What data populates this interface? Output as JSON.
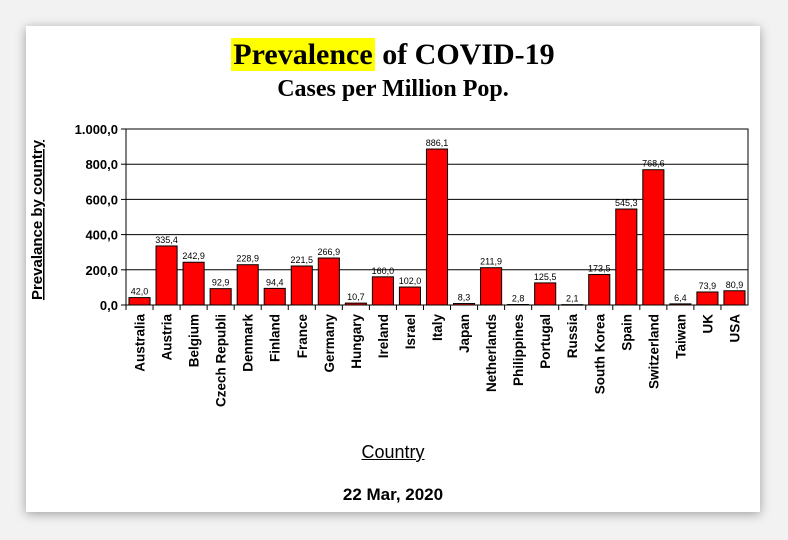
{
  "chart_data": {
    "type": "bar",
    "title_highlight": "Prevalence",
    "title_rest": " of COVID-19",
    "subtitle": "Cases per Million Pop.",
    "xlabel": "Country",
    "ylabel": "Prevalance by country",
    "footer": "22 Mar, 2020",
    "ylim": [
      0,
      1000
    ],
    "yticks": [
      "0,0",
      "200,0",
      "400,0",
      "600,0",
      "800,0",
      "1.000,0"
    ],
    "categories": [
      "Australia",
      "Austria",
      "Belgium",
      "Czech Republi",
      "Denmark",
      "Finland",
      "France",
      "Germany",
      "Hungary",
      "Ireland",
      "Israel",
      "Italy",
      "Japan",
      "Netherlands",
      "Philippines",
      "Portugal",
      "Russia",
      "South Korea",
      "Spain",
      "Switzerland",
      "Taiwan",
      "UK",
      "USA"
    ],
    "values": [
      42.0,
      335.4,
      242.9,
      92.9,
      228.9,
      94.4,
      221.5,
      266.9,
      10.7,
      160.0,
      102.0,
      886.1,
      8.3,
      211.9,
      2.8,
      125.5,
      2.1,
      173.5,
      545.3,
      768.6,
      6.4,
      73.9,
      80.9
    ],
    "value_labels": [
      "42,0",
      "335,4",
      "242,9",
      "92,9",
      "228,9",
      "94,4",
      "221,5",
      "266,9",
      "10,7",
      "160,0",
      "102,0",
      "886,1",
      "8,3",
      "211,9",
      "2,8",
      "125,5",
      "2,1",
      "173,5",
      "545,3",
      "768,6",
      "6,4",
      "73,9",
      "80,9"
    ],
    "bar_color": "#ff0000",
    "highlight_color": "#ffff00",
    "grid": true
  }
}
